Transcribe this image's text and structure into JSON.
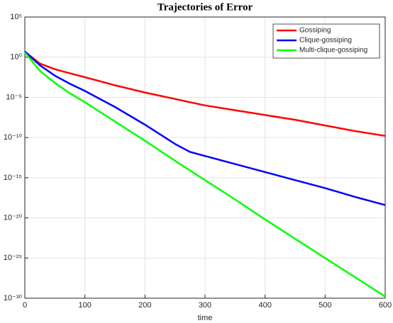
{
  "chart_data": {
    "type": "line",
    "title": "Trajectories of Error",
    "xlabel": "time",
    "x": [
      0,
      25,
      50,
      75,
      100,
      150,
      200,
      250,
      275,
      300,
      350,
      400,
      450,
      500,
      550,
      600
    ],
    "series": [
      {
        "name": "Gossiping",
        "color": "#ff0000",
        "values": [
          5,
          0.16,
          0.032,
          0.01,
          0.0032,
          0.00032,
          4e-05,
          6.3e-06,
          2.5e-06,
          1e-06,
          2.5e-07,
          6.3e-08,
          1.6e-08,
          3.2e-09,
          6.3e-10,
          1.6e-10
        ]
      },
      {
        "name": "Clique-gossiping",
        "color": "#0000ff",
        "values": [
          5,
          0.1,
          0.005,
          0.0005,
          6.3e-05,
          6.3e-07,
          4e-09,
          1.6e-11,
          1.6e-12,
          5e-13,
          5e-14,
          5e-15,
          5e-16,
          5e-17,
          4e-18,
          4e-19
        ]
      },
      {
        "name": "Multi-clique-gossiping",
        "color": "#00ff00",
        "values": [
          4,
          0.02,
          0.00063,
          3.2e-05,
          2.5e-06,
          1e-08,
          4e-11,
          1.3e-13,
          7.9e-15,
          5e-16,
          2e-18,
          6.3e-21,
          2.5e-23,
          1e-25,
          4e-28,
          1.6e-30
        ]
      }
    ],
    "xlim": [
      0,
      600
    ],
    "xticks": [
      0,
      100,
      200,
      300,
      400,
      500,
      600
    ],
    "ylim": [
      1e-30,
      100000
    ],
    "log_y": true,
    "yticks": [
      {
        "value": 1e-30,
        "label": "10⁻³⁰"
      },
      {
        "value": 1e-25,
        "label": "10⁻²⁵"
      },
      {
        "value": 1e-20,
        "label": "10⁻²⁰"
      },
      {
        "value": 1e-15,
        "label": "10⁻¹⁵"
      },
      {
        "value": 1e-10,
        "label": "10⁻¹⁰"
      },
      {
        "value": 1e-05,
        "label": "10⁻⁵"
      },
      {
        "value": 1,
        "label": "10⁰"
      },
      {
        "value": 100000,
        "label": "10⁵"
      }
    ],
    "grid": true,
    "legend": "northeast"
  }
}
